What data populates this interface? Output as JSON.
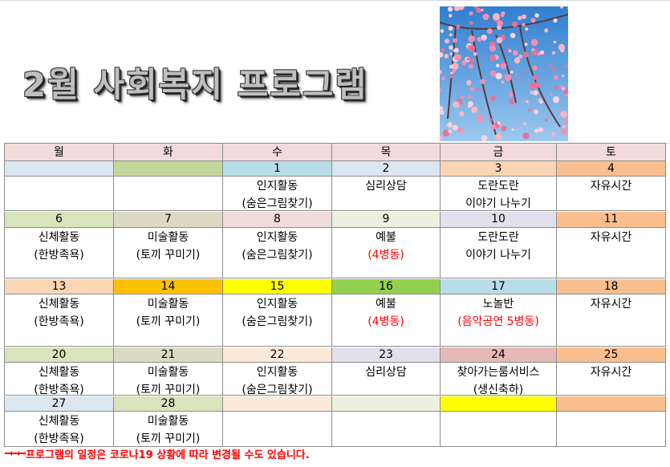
{
  "title": "2월 사회복지 프로그램",
  "header_color": "#f2dcdb",
  "weekdays": [
    "월",
    "화",
    "수",
    "목",
    "금",
    "토"
  ],
  "weeks": [
    {
      "days": [
        {
          "color": "#dce6f1"
        },
        {
          "color": "#c4d79b"
        },
        {
          "date": 1,
          "color": "#b7dee8",
          "lines": [
            {
              "text": "인지활동"
            },
            {
              "text": "(숨은그림찾기)"
            }
          ]
        },
        {
          "date": 2,
          "color": "#dce6f1",
          "lines": [
            {
              "text": "심리상담"
            }
          ]
        },
        {
          "date": 3,
          "color": "#fcd5b4",
          "lines": [
            {
              "text": "도란도란"
            },
            {
              "text": "이야기 나누기"
            }
          ]
        },
        {
          "date": 4,
          "color": "#fabf8f",
          "lines": [
            {
              "text": "자유시간"
            }
          ]
        }
      ]
    },
    {
      "days": [
        {
          "date": 6,
          "color": "#d8e4bc",
          "lines": [
            {
              "text": "신체활동"
            },
            {
              "text": "(한방족욕)"
            }
          ]
        },
        {
          "date": 7,
          "color": "#ddd9c4",
          "lines": [
            {
              "text": "미술활동"
            },
            {
              "text": "(토끼 꾸미기)"
            }
          ]
        },
        {
          "date": 8,
          "color": "#f2dcdb",
          "lines": [
            {
              "text": "인지활동"
            },
            {
              "text": "(숨은그림찾기)"
            }
          ]
        },
        {
          "date": 9,
          "color": "#ebf1de",
          "lines": [
            {
              "text": "예불"
            },
            {
              "text": "(4병동)",
              "color": "#ff0000"
            }
          ]
        },
        {
          "date": 10,
          "color": "#e4dfec",
          "lines": [
            {
              "text": "도란도란"
            },
            {
              "text": "이야기 나누기"
            }
          ]
        },
        {
          "date": 11,
          "color": "#fabf8f",
          "lines": [
            {
              "text": "자유시간"
            }
          ]
        }
      ]
    },
    {
      "days": [
        {
          "date": 13,
          "color": "#fcd5b4",
          "lines": [
            {
              "text": "신체활동"
            },
            {
              "text": "(한방족욕)"
            }
          ]
        },
        {
          "date": 14,
          "color": "#ffc000",
          "lines": [
            {
              "text": "미술활동"
            },
            {
              "text": "(토끼 꾸미기)"
            }
          ]
        },
        {
          "date": 15,
          "color": "#ffff00",
          "lines": [
            {
              "text": "인지활동"
            },
            {
              "text": "(숨은그림찾기)"
            }
          ]
        },
        {
          "date": 16,
          "color": "#92d050",
          "lines": [
            {
              "text": "예불"
            },
            {
              "text": "(4병동)",
              "color": "#ff0000"
            }
          ]
        },
        {
          "date": 17,
          "color": "#b7dee8",
          "lines": [
            {
              "text": "노놀반"
            },
            {
              "text": "(음악공연 5병동)",
              "color": "#ff0000"
            }
          ]
        },
        {
          "date": 18,
          "color": "#fabf8f",
          "lines": [
            {
              "text": "자유시간"
            }
          ]
        }
      ]
    },
    {
      "days": [
        {
          "date": 20,
          "color": "#d8e4bc",
          "lines": [
            {
              "text": "신체활동"
            },
            {
              "text": "(한방족욕)"
            }
          ]
        },
        {
          "date": 21,
          "color": "#ddd9c4",
          "lines": [
            {
              "text": "미술활동"
            },
            {
              "text": "(토끼 꾸미기)"
            }
          ]
        },
        {
          "date": 22,
          "color": "#fde9d9",
          "lines": [
            {
              "text": "인지활동"
            },
            {
              "text": "(숨은그림찾기)"
            }
          ]
        },
        {
          "date": 23,
          "color": "#e4dfec",
          "lines": [
            {
              "text": "심리상담"
            }
          ]
        },
        {
          "date": 24,
          "color": "#e6b8b7",
          "lines": [
            {
              "text": "찾아가는룸서비스"
            },
            {
              "text": "(생신축하)"
            }
          ]
        },
        {
          "date": 25,
          "color": "#fabf8f",
          "lines": [
            {
              "text": "자유시간"
            }
          ]
        }
      ]
    },
    {
      "days": [
        {
          "date": 27,
          "color": "#dce6f1",
          "lines": [
            {
              "text": "신체활동"
            },
            {
              "text": "(한방족욕)"
            }
          ]
        },
        {
          "date": 28,
          "color": "#d8e4bc",
          "lines": [
            {
              "text": "미술활동"
            },
            {
              "text": "(토끼 꾸미기)"
            }
          ]
        },
        {
          "color": "#fde9d9"
        },
        {
          "color": "#ebf1de"
        },
        {
          "color": "#ffff00"
        },
        {
          "color": "#fabf8f"
        }
      ]
    }
  ],
  "note": "프로그램의 일정은 코로나19 상황에 따라 변경될 수도 있습니다."
}
